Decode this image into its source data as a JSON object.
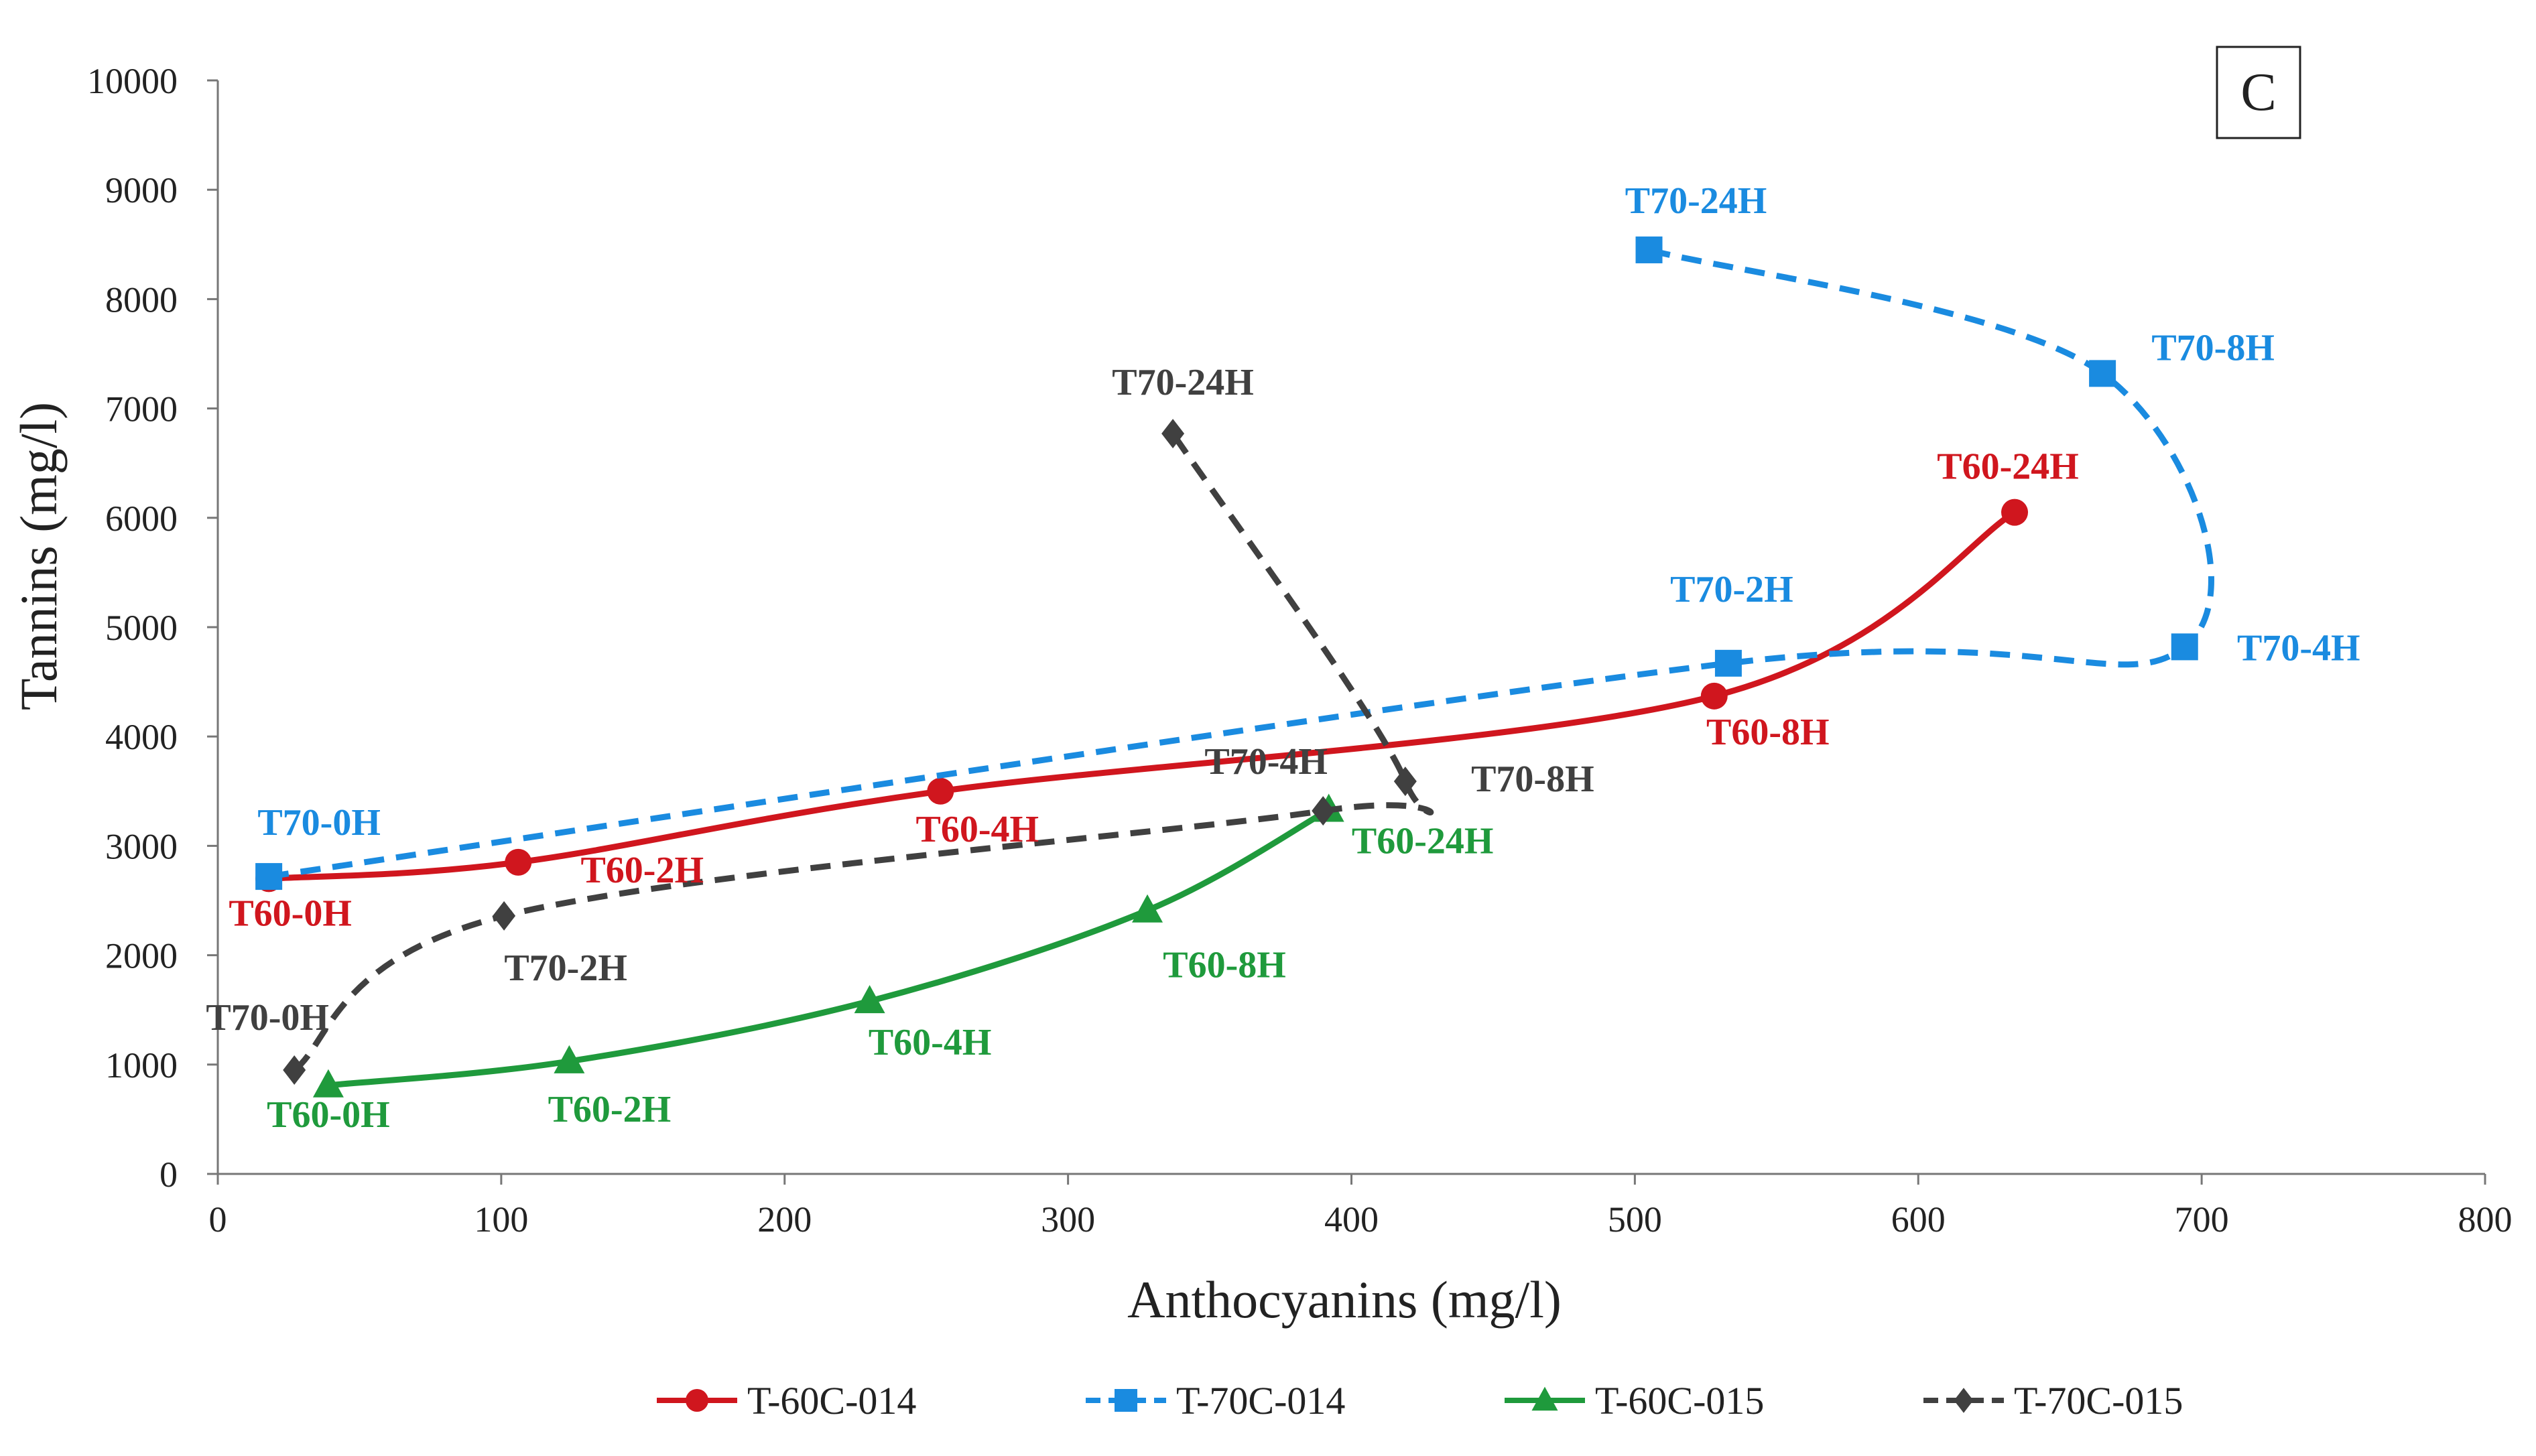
{
  "chart_data": {
    "type": "line",
    "title": "",
    "panel_label": "C",
    "xlabel": "Anthocyanins (mg/l)",
    "ylabel": "Tannins (mg/l)",
    "xlim": [
      0,
      800
    ],
    "ylim": [
      0,
      10000
    ],
    "x_ticks": [
      0,
      100,
      200,
      300,
      400,
      500,
      600,
      700,
      800
    ],
    "y_ticks": [
      0,
      1000,
      2000,
      3000,
      4000,
      5000,
      6000,
      7000,
      8000,
      9000,
      10000
    ],
    "legend_position": "bottom",
    "series": [
      {
        "name": "T-60C-014",
        "color": "#d0161e",
        "marker": "circle",
        "dash": "solid",
        "points": [
          {
            "x": 18,
            "y": 2700,
            "label": "T60-0H"
          },
          {
            "x": 106,
            "y": 2850,
            "label": "T60-2H"
          },
          {
            "x": 255,
            "y": 3500,
            "label": "T60-4H"
          },
          {
            "x": 528,
            "y": 4370,
            "label": "T60-8H"
          },
          {
            "x": 634,
            "y": 6050,
            "label": "T60-24H"
          }
        ]
      },
      {
        "name": "T-70C-014",
        "color": "#1a8be0",
        "marker": "square",
        "dash": "dashed",
        "points": [
          {
            "x": 18,
            "y": 2720,
            "label": "T70-0H"
          },
          {
            "x": 533,
            "y": 4670,
            "label": "T70-2H"
          },
          {
            "x": 694,
            "y": 4820,
            "label": "T70-4H"
          },
          {
            "x": 665,
            "y": 7320,
            "label": "T70-8H"
          },
          {
            "x": 505,
            "y": 8450,
            "label": "T70-24H"
          }
        ]
      },
      {
        "name": "T-60C-015",
        "color": "#1f9a3c",
        "marker": "triangle",
        "dash": "solid",
        "points": [
          {
            "x": 39,
            "y": 810,
            "label": "T60-0H"
          },
          {
            "x": 124,
            "y": 1030,
            "label": "T60-2H"
          },
          {
            "x": 230,
            "y": 1580,
            "label": "T60-4H"
          },
          {
            "x": 328,
            "y": 2410,
            "label": "T60-8H"
          },
          {
            "x": 392,
            "y": 3330,
            "label": "T60-24H"
          }
        ]
      },
      {
        "name": "T-70C-015",
        "color": "#404040",
        "marker": "diamond",
        "dash": "dashed",
        "points": [
          {
            "x": 27,
            "y": 950,
            "label": "T70-0H"
          },
          {
            "x": 101,
            "y": 2360,
            "label": "T70-2H"
          },
          {
            "x": 390,
            "y": 3320,
            "label": "T70-4H"
          },
          {
            "x": 419,
            "y": 3590,
            "label": "T70-8H"
          },
          {
            "x": 337,
            "y": 6770,
            "label": "T70-24H"
          }
        ]
      }
    ]
  }
}
